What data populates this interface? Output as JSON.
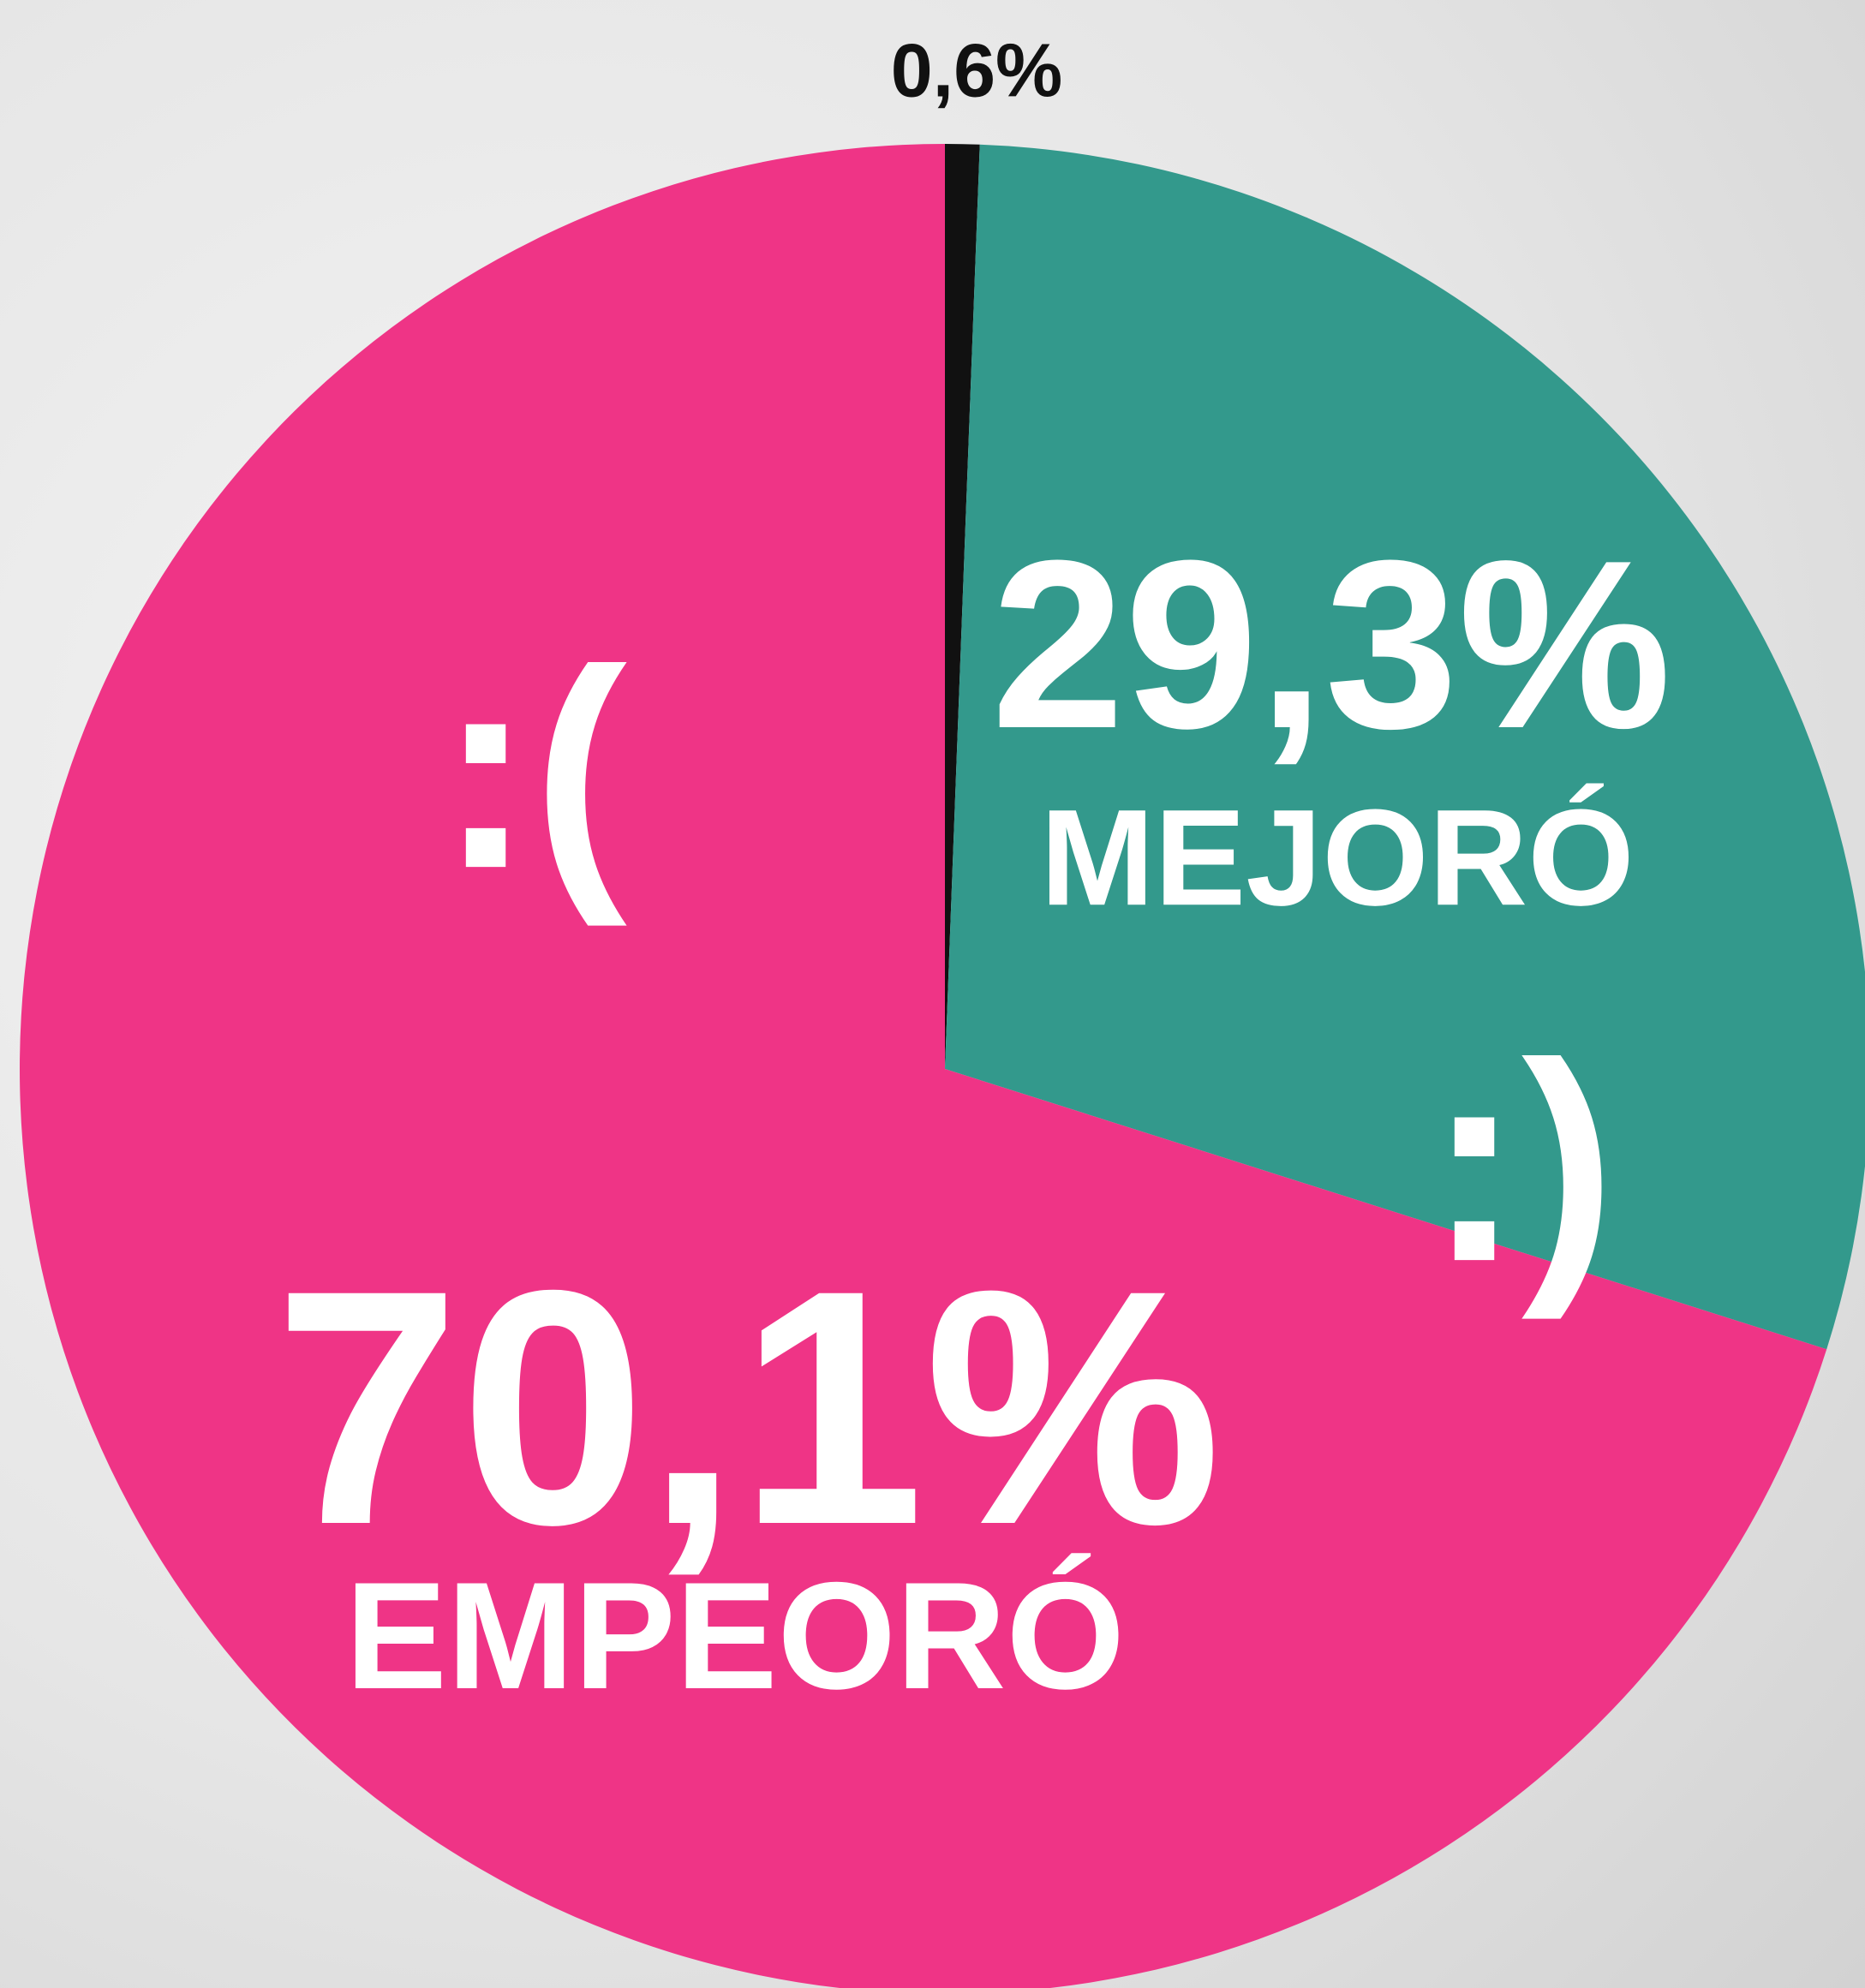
{
  "chart_data": {
    "type": "pie",
    "categories": [
      null,
      "MEJORÓ",
      "EMPEORÓ"
    ],
    "values": [
      0.6,
      29.3,
      70.1
    ],
    "value_labels": [
      "0,6%",
      "29,3%",
      "70,1%"
    ],
    "colors": [
      "#111111",
      "#33998c",
      "#ef3486"
    ],
    "annotations": [
      ":(",
      ":)"
    ]
  }
}
